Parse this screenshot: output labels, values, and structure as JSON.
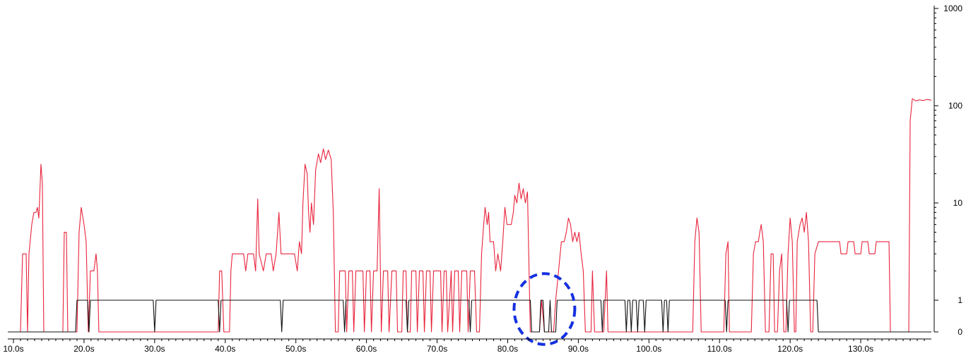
{
  "chart_data": {
    "type": "line",
    "title": "",
    "xlabel": "",
    "ylabel": "",
    "x_range": [
      9.2,
      140
    ],
    "y_scale": "log-with-zero",
    "y_ticks": [
      {
        "value": 0,
        "label": "0"
      },
      {
        "value": 1,
        "label": "1"
      },
      {
        "value": 10,
        "label": "10"
      },
      {
        "value": 100,
        "label": "100"
      },
      {
        "value": 1000,
        "label": "1000"
      }
    ],
    "x_ticks": [
      {
        "value": 10,
        "label": "10.0s"
      },
      {
        "value": 20,
        "label": "20.0s"
      },
      {
        "value": 30,
        "label": "30.0s"
      },
      {
        "value": 40,
        "label": "40.0s"
      },
      {
        "value": 50,
        "label": "50.0s"
      },
      {
        "value": 60,
        "label": "60.0s"
      },
      {
        "value": 70,
        "label": "70.0s"
      },
      {
        "value": 80,
        "label": "80.0s"
      },
      {
        "value": 90,
        "label": "90.0s"
      },
      {
        "value": 100,
        "label": "100.0s"
      },
      {
        "value": 110,
        "label": "110.0s"
      },
      {
        "value": 120,
        "label": "120.0s"
      },
      {
        "value": 130,
        "label": "130.0s"
      }
    ],
    "grid": false,
    "series": [
      {
        "color": "#e8243c",
        "points": [
          [
            9.2,
            0
          ],
          [
            11.0,
            0
          ],
          [
            11.3,
            3
          ],
          [
            11.8,
            3
          ],
          [
            12.0,
            0
          ],
          [
            12.2,
            3
          ],
          [
            12.6,
            6
          ],
          [
            12.9,
            8
          ],
          [
            13.2,
            8
          ],
          [
            13.4,
            9
          ],
          [
            13.6,
            7
          ],
          [
            13.9,
            25
          ],
          [
            14.1,
            16
          ],
          [
            14.3,
            0
          ],
          [
            17.0,
            0
          ],
          [
            17.2,
            5
          ],
          [
            17.5,
            5
          ],
          [
            17.7,
            0
          ],
          [
            19.0,
            0
          ],
          [
            19.3,
            5
          ],
          [
            19.6,
            9
          ],
          [
            20.0,
            6
          ],
          [
            20.3,
            4
          ],
          [
            20.6,
            0
          ],
          [
            20.9,
            2
          ],
          [
            21.4,
            2
          ],
          [
            21.7,
            3
          ],
          [
            21.9,
            2
          ],
          [
            22.1,
            0
          ],
          [
            39.0,
            0
          ],
          [
            39.2,
            2
          ],
          [
            39.5,
            2
          ],
          [
            39.8,
            0
          ],
          [
            40.6,
            0
          ],
          [
            40.8,
            2
          ],
          [
            41.0,
            3
          ],
          [
            42.6,
            3
          ],
          [
            42.9,
            2
          ],
          [
            43.2,
            3
          ],
          [
            44.0,
            3
          ],
          [
            44.3,
            2
          ],
          [
            44.6,
            11
          ],
          [
            44.8,
            3
          ],
          [
            45.4,
            2
          ],
          [
            45.8,
            3
          ],
          [
            46.5,
            3
          ],
          [
            46.8,
            2
          ],
          [
            47.2,
            3
          ],
          [
            47.6,
            8
          ],
          [
            47.9,
            3
          ],
          [
            49.8,
            3
          ],
          [
            50.2,
            2
          ],
          [
            50.5,
            4
          ],
          [
            50.8,
            3
          ],
          [
            51.0,
            10
          ],
          [
            51.3,
            25
          ],
          [
            51.6,
            20
          ],
          [
            51.8,
            8
          ],
          [
            52.0,
            5
          ],
          [
            52.2,
            10
          ],
          [
            52.5,
            6
          ],
          [
            52.8,
            22
          ],
          [
            53.2,
            32
          ],
          [
            53.5,
            26
          ],
          [
            53.9,
            36
          ],
          [
            54.2,
            28
          ],
          [
            54.6,
            35
          ],
          [
            55.0,
            28
          ],
          [
            55.3,
            8
          ],
          [
            55.6,
            0
          ],
          [
            56.0,
            0
          ],
          [
            56.2,
            2
          ],
          [
            57.0,
            2
          ],
          [
            57.2,
            0
          ],
          [
            57.5,
            2
          ],
          [
            58.0,
            2
          ],
          [
            58.2,
            0
          ],
          [
            58.5,
            2
          ],
          [
            59.5,
            2
          ],
          [
            59.7,
            0
          ],
          [
            60.0,
            2
          ],
          [
            60.5,
            2
          ],
          [
            60.7,
            0
          ],
          [
            61.0,
            2
          ],
          [
            61.5,
            2
          ],
          [
            61.8,
            14
          ],
          [
            62.1,
            0
          ],
          [
            62.4,
            2
          ],
          [
            63.0,
            2
          ],
          [
            63.2,
            0
          ],
          [
            63.6,
            2
          ],
          [
            64.2,
            2
          ],
          [
            64.4,
            0
          ],
          [
            65.0,
            0
          ],
          [
            65.2,
            2
          ],
          [
            65.6,
            2
          ],
          [
            65.8,
            0
          ],
          [
            66.2,
            0
          ],
          [
            66.4,
            2
          ],
          [
            67.0,
            2
          ],
          [
            67.2,
            0
          ],
          [
            67.5,
            2
          ],
          [
            68.0,
            2
          ],
          [
            68.2,
            0
          ],
          [
            68.5,
            2
          ],
          [
            69.0,
            2
          ],
          [
            69.2,
            0
          ],
          [
            69.5,
            2
          ],
          [
            70.5,
            2
          ],
          [
            70.7,
            0
          ],
          [
            71.0,
            2
          ],
          [
            71.3,
            2
          ],
          [
            71.5,
            0
          ],
          [
            72.0,
            2
          ],
          [
            72.2,
            0
          ],
          [
            72.5,
            2
          ],
          [
            73.0,
            2
          ],
          [
            73.2,
            0
          ],
          [
            73.5,
            2
          ],
          [
            74.2,
            2
          ],
          [
            74.4,
            0
          ],
          [
            74.7,
            2
          ],
          [
            75.3,
            2
          ],
          [
            75.6,
            0
          ],
          [
            76.0,
            0
          ],
          [
            76.3,
            3
          ],
          [
            76.6,
            6
          ],
          [
            76.8,
            9
          ],
          [
            77.1,
            6
          ],
          [
            77.3,
            8
          ],
          [
            77.5,
            4
          ],
          [
            78.0,
            4
          ],
          [
            78.3,
            2
          ],
          [
            78.6,
            3
          ],
          [
            79.0,
            2
          ],
          [
            79.3,
            4
          ],
          [
            79.6,
            9
          ],
          [
            79.9,
            6
          ],
          [
            80.5,
            6
          ],
          [
            80.8,
            8
          ],
          [
            81.0,
            12
          ],
          [
            81.3,
            10
          ],
          [
            81.6,
            16
          ],
          [
            81.9,
            11
          ],
          [
            82.2,
            14
          ],
          [
            82.5,
            10
          ],
          [
            82.8,
            13
          ],
          [
            83.2,
            0
          ],
          [
            84.5,
            0
          ],
          [
            84.8,
            1
          ],
          [
            85.2,
            0
          ],
          [
            86.5,
            0
          ],
          [
            86.8,
            1
          ],
          [
            87.2,
            2
          ],
          [
            87.6,
            4
          ],
          [
            88.0,
            4
          ],
          [
            88.3,
            5
          ],
          [
            88.6,
            7
          ],
          [
            88.9,
            6
          ],
          [
            89.2,
            4
          ],
          [
            89.5,
            5
          ],
          [
            89.8,
            4
          ],
          [
            90.1,
            5
          ],
          [
            90.4,
            3
          ],
          [
            90.7,
            2
          ],
          [
            91.0,
            0
          ],
          [
            91.8,
            0
          ],
          [
            92.0,
            2
          ],
          [
            92.3,
            0
          ],
          [
            93.6,
            0
          ],
          [
            93.8,
            1
          ],
          [
            94.0,
            2
          ],
          [
            94.2,
            0
          ],
          [
            106.2,
            0
          ],
          [
            106.5,
            4
          ],
          [
            106.8,
            7
          ],
          [
            107.1,
            5
          ],
          [
            107.4,
            0
          ],
          [
            110.6,
            0
          ],
          [
            110.9,
            3
          ],
          [
            111.2,
            4
          ],
          [
            111.4,
            0
          ],
          [
            114.5,
            0
          ],
          [
            114.8,
            3
          ],
          [
            115.1,
            4
          ],
          [
            115.5,
            4
          ],
          [
            115.7,
            5
          ],
          [
            115.9,
            6
          ],
          [
            116.2,
            4
          ],
          [
            116.5,
            0
          ],
          [
            117.0,
            0
          ],
          [
            117.3,
            3
          ],
          [
            117.6,
            3
          ],
          [
            117.8,
            0
          ],
          [
            118.2,
            0
          ],
          [
            118.5,
            2
          ],
          [
            118.8,
            3
          ],
          [
            119.1,
            0
          ],
          [
            119.4,
            0
          ],
          [
            119.7,
            3
          ],
          [
            120.0,
            7
          ],
          [
            120.3,
            4
          ],
          [
            120.6,
            0
          ],
          [
            120.8,
            0
          ],
          [
            121.0,
            4
          ],
          [
            121.4,
            6
          ],
          [
            121.7,
            7
          ],
          [
            122.0,
            5
          ],
          [
            122.3,
            8
          ],
          [
            122.6,
            4
          ],
          [
            122.9,
            0
          ],
          [
            123.2,
            0
          ],
          [
            123.5,
            3
          ],
          [
            124.0,
            4
          ],
          [
            127.0,
            4
          ],
          [
            127.2,
            3
          ],
          [
            128.0,
            3
          ],
          [
            128.2,
            4
          ],
          [
            129.0,
            4
          ],
          [
            129.2,
            3
          ],
          [
            130.0,
            3
          ],
          [
            130.2,
            4
          ],
          [
            131.0,
            4
          ],
          [
            131.2,
            3
          ],
          [
            132.0,
            3
          ],
          [
            132.2,
            4
          ],
          [
            134.0,
            4
          ],
          [
            134.2,
            0
          ],
          [
            136.8,
            0
          ],
          [
            137.0,
            70
          ],
          [
            137.3,
            118
          ],
          [
            137.8,
            112
          ],
          [
            138.3,
            115
          ],
          [
            138.8,
            113
          ],
          [
            139.4,
            116
          ],
          [
            140.0,
            114
          ]
        ]
      },
      {
        "color": "#111111",
        "points": [
          [
            9.2,
            0
          ],
          [
            18.8,
            0
          ],
          [
            19.0,
            1
          ],
          [
            20.5,
            1
          ],
          [
            20.7,
            0
          ],
          [
            20.9,
            1
          ],
          [
            29.8,
            1
          ],
          [
            30.0,
            0
          ],
          [
            30.2,
            1
          ],
          [
            39.0,
            1
          ],
          [
            39.2,
            0
          ],
          [
            39.4,
            1
          ],
          [
            47.8,
            1
          ],
          [
            48.0,
            0
          ],
          [
            48.2,
            1
          ],
          [
            56.7,
            1
          ],
          [
            56.9,
            0
          ],
          [
            57.1,
            1
          ],
          [
            65.6,
            1
          ],
          [
            65.8,
            0
          ],
          [
            66.0,
            1
          ],
          [
            74.5,
            1
          ],
          [
            74.7,
            0
          ],
          [
            74.9,
            1
          ],
          [
            83.2,
            1
          ],
          [
            83.4,
            0
          ],
          [
            84.5,
            0
          ],
          [
            84.7,
            1
          ],
          [
            85.0,
            1
          ],
          [
            85.2,
            0
          ],
          [
            85.8,
            0
          ],
          [
            86.0,
            1
          ],
          [
            86.2,
            0
          ],
          [
            86.8,
            0
          ],
          [
            87.0,
            1
          ],
          [
            93.2,
            1
          ],
          [
            93.4,
            0
          ],
          [
            93.6,
            1
          ],
          [
            96.6,
            1
          ],
          [
            96.8,
            0
          ],
          [
            97.0,
            1
          ],
          [
            97.3,
            1
          ],
          [
            97.5,
            0
          ],
          [
            97.7,
            1
          ],
          [
            98.2,
            1
          ],
          [
            98.4,
            0
          ],
          [
            98.6,
            1
          ],
          [
            99.2,
            1
          ],
          [
            99.4,
            0
          ],
          [
            99.6,
            1
          ],
          [
            101.8,
            1
          ],
          [
            102.0,
            0
          ],
          [
            102.2,
            1
          ],
          [
            102.5,
            1
          ],
          [
            102.7,
            0
          ],
          [
            102.9,
            1
          ],
          [
            110.8,
            1
          ],
          [
            111.0,
            0
          ],
          [
            111.2,
            1
          ],
          [
            119.5,
            1
          ],
          [
            119.7,
            0
          ],
          [
            119.9,
            1
          ],
          [
            123.8,
            1
          ],
          [
            124.0,
            0
          ],
          [
            140.0,
            0
          ]
        ]
      }
    ],
    "annotations": [
      {
        "type": "dashed-circle",
        "color": "#1530e0",
        "x": 85.2,
        "y": 0.7,
        "rx_data": 4.3,
        "ry_levels": 0.85
      }
    ]
  }
}
